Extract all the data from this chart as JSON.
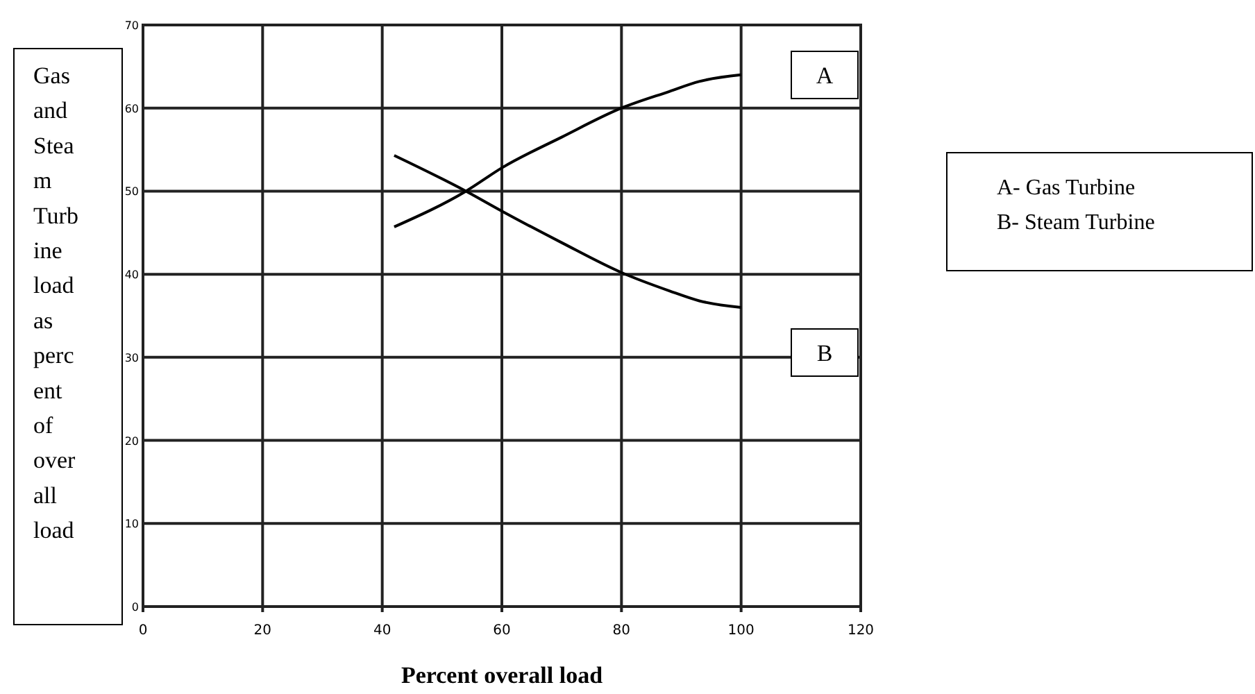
{
  "chart_data": {
    "type": "line",
    "xlabel": "Percent overall load",
    "ylabel": "Gas and Stea m Turb ine load as perc ent of over all load",
    "xlim": [
      0,
      120
    ],
    "xticks": [
      0,
      20,
      40,
      60,
      80,
      100,
      120
    ],
    "ylim": [
      0,
      70
    ],
    "yticks": [
      0,
      10,
      20,
      30,
      40,
      50,
      60,
      70
    ],
    "grid": true,
    "marker": "none",
    "line_style": "solid",
    "series": [
      {
        "name": "A",
        "color": "#000000",
        "x": [
          42,
          54,
          60,
          70,
          80,
          88,
          93,
          100
        ],
        "values": [
          45.7,
          50,
          52.8,
          56.5,
          60,
          62,
          63.2,
          64
        ]
      },
      {
        "name": "B",
        "color": "#000000",
        "x": [
          42,
          54,
          60,
          70,
          80,
          88,
          93,
          100
        ],
        "values": [
          54.3,
          50,
          47.6,
          43.8,
          40.2,
          38,
          36.8,
          36
        ]
      }
    ],
    "annotations": [
      "A- Gas Turbine",
      "B- Steam Turbine"
    ]
  }
}
